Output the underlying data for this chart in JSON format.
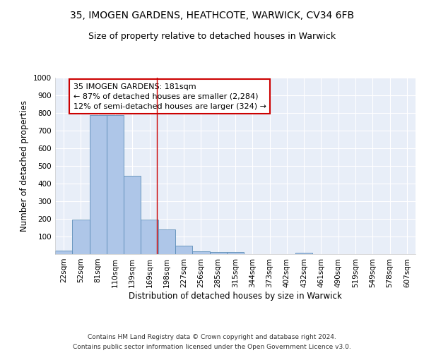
{
  "title1": "35, IMOGEN GARDENS, HEATHCOTE, WARWICK, CV34 6FB",
  "title2": "Size of property relative to detached houses in Warwick",
  "xlabel": "Distribution of detached houses by size in Warwick",
  "ylabel": "Number of detached properties",
  "categories": [
    "22sqm",
    "52sqm",
    "81sqm",
    "110sqm",
    "139sqm",
    "169sqm",
    "198sqm",
    "227sqm",
    "256sqm",
    "285sqm",
    "315sqm",
    "344sqm",
    "373sqm",
    "402sqm",
    "432sqm",
    "461sqm",
    "490sqm",
    "519sqm",
    "549sqm",
    "578sqm",
    "607sqm"
  ],
  "values": [
    20,
    195,
    790,
    790,
    445,
    195,
    140,
    50,
    15,
    12,
    12,
    0,
    0,
    0,
    10,
    0,
    0,
    0,
    0,
    0,
    0
  ],
  "bar_color": "#aec6e8",
  "bar_edge_color": "#5b8db8",
  "background_color": "#e8eef8",
  "grid_color": "#ffffff",
  "annotation_text": "35 IMOGEN GARDENS: 181sqm\n← 87% of detached houses are smaller (2,284)\n12% of semi-detached houses are larger (324) →",
  "annotation_box_color": "#ffffff",
  "annotation_box_edge_color": "#cc0000",
  "ylim": [
    0,
    1000
  ],
  "yticks": [
    0,
    100,
    200,
    300,
    400,
    500,
    600,
    700,
    800,
    900,
    1000
  ],
  "footnote1": "Contains HM Land Registry data © Crown copyright and database right 2024.",
  "footnote2": "Contains public sector information licensed under the Open Government Licence v3.0.",
  "title1_fontsize": 10,
  "title2_fontsize": 9,
  "axis_label_fontsize": 8.5,
  "tick_fontsize": 7.5,
  "annotation_fontsize": 8,
  "footnote_fontsize": 6.5
}
